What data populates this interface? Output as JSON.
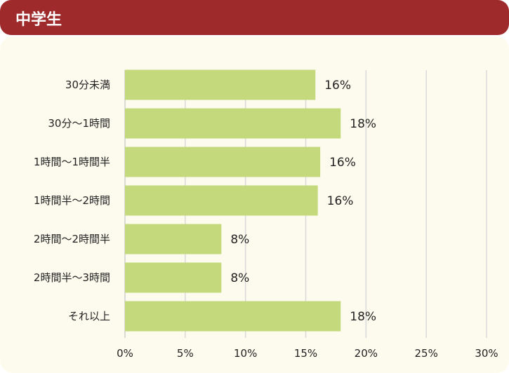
{
  "header": {
    "title": "中学生"
  },
  "colors": {
    "header": "#9e2a2b",
    "background": "#fdfbee",
    "bar": "#c4d97b",
    "grid": "#d9d9d9"
  },
  "chart_data": {
    "type": "bar",
    "orientation": "horizontal",
    "categories": [
      "30分未満",
      "30分～1時間",
      "1時間～1時間半",
      "1時間半～2時間",
      "2時間～2時間半",
      "2時間半～3時間",
      "それ以上"
    ],
    "values": [
      15.8,
      17.9,
      16.2,
      16.0,
      8.0,
      8.0,
      17.9
    ],
    "data_labels": [
      "16%",
      "18%",
      "16%",
      "16%",
      "8%",
      "8%",
      "18%"
    ],
    "xlim": [
      0,
      30
    ],
    "xticks": [
      "0%",
      "5%",
      "10%",
      "15%",
      "20%",
      "25%",
      "30%"
    ],
    "grid": true,
    "xlabel": "",
    "ylabel": "",
    "title": ""
  }
}
